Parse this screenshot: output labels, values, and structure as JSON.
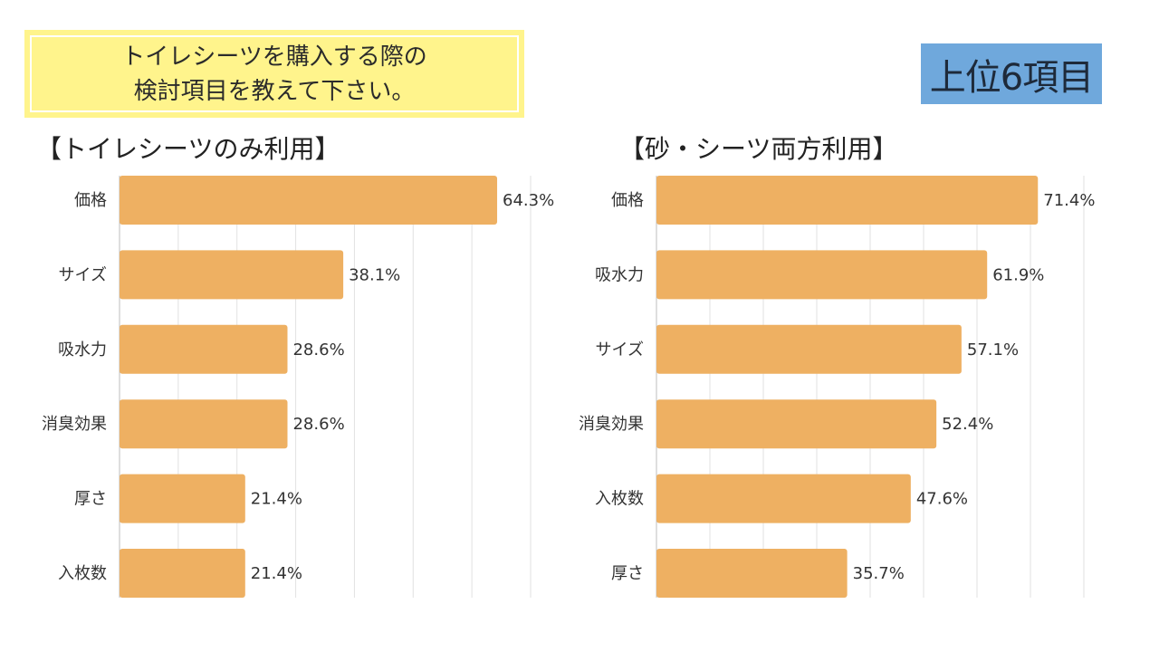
{
  "question": {
    "line1": "トイレシーツを購入する際の",
    "line2": "検討項目を教えて下さい。"
  },
  "badge": "上位6項目",
  "colors": {
    "bar": "#eeb062",
    "question_bg": "#fff48c",
    "badge_bg": "#6fa8dc"
  },
  "chart_data": [
    {
      "type": "bar",
      "orientation": "horizontal",
      "title": "【トイレシーツのみ利用】",
      "categories": [
        "価格",
        "サイズ",
        "吸水力",
        "消臭効果",
        "厚さ",
        "入枚数"
      ],
      "values": [
        64.3,
        38.1,
        28.6,
        28.6,
        21.4,
        21.4
      ],
      "value_labels": [
        "64.3%",
        "38.1%",
        "28.6%",
        "28.6%",
        "21.4%",
        "21.4%"
      ],
      "xlim": [
        0,
        70
      ],
      "grid": true
    },
    {
      "type": "bar",
      "orientation": "horizontal",
      "title": "【砂・シーツ両方利用】",
      "categories": [
        "価格",
        "吸水力",
        "サイズ",
        "消臭効果",
        "入枚数",
        "厚さ"
      ],
      "values": [
        71.4,
        61.9,
        57.1,
        52.4,
        47.6,
        35.7
      ],
      "value_labels": [
        "71.4%",
        "61.9%",
        "57.1%",
        "52.4%",
        "47.6%",
        "35.7%"
      ],
      "xlim": [
        0,
        80
      ],
      "grid": true
    }
  ]
}
